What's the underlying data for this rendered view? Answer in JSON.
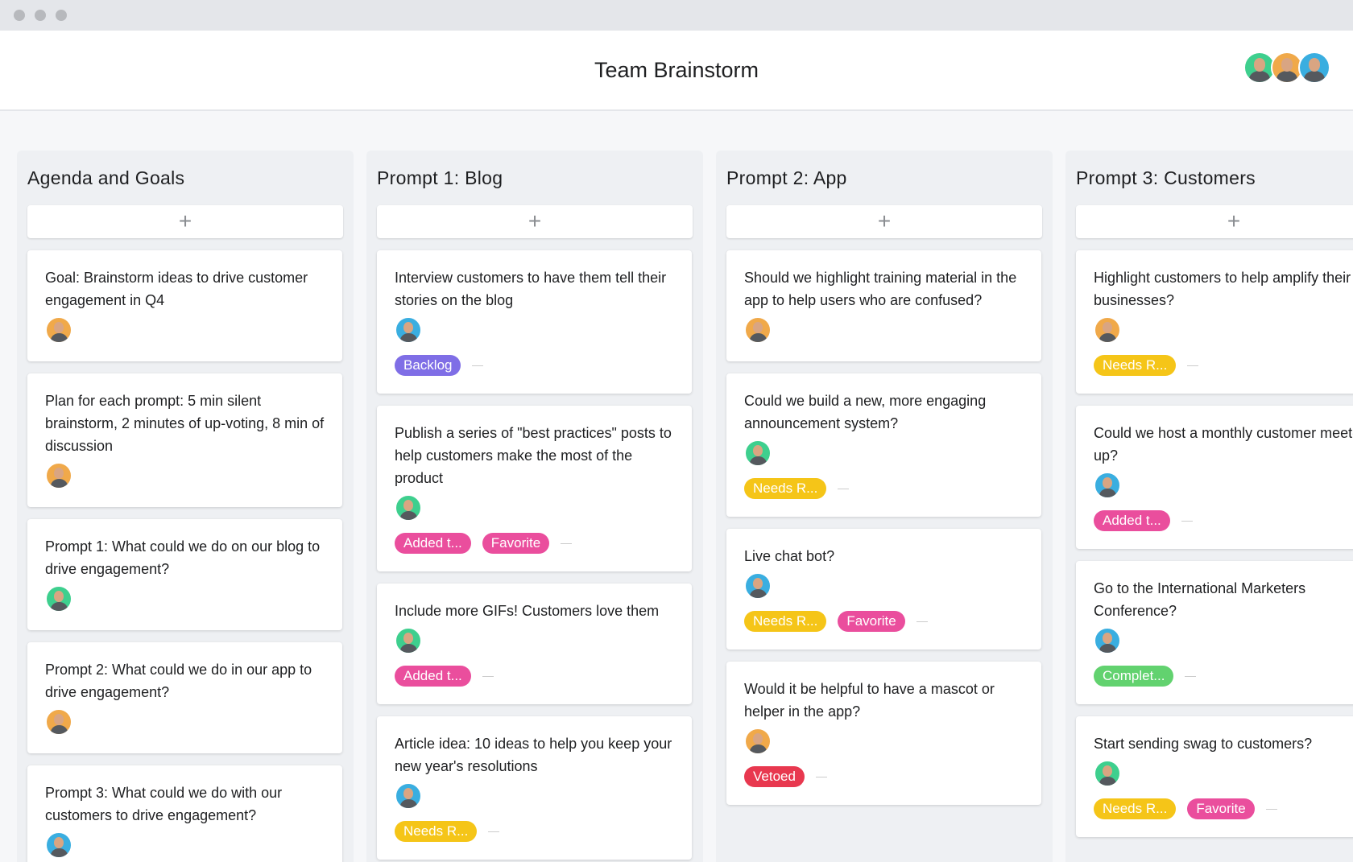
{
  "header": {
    "title": "Team Brainstorm",
    "members": [
      "#3ecf8e",
      "#f0a94a",
      "#3aaee0"
    ]
  },
  "columns": [
    {
      "title": "Agenda and Goals",
      "cards": [
        {
          "text": "Goal: Brainstorm ideas to drive customer engagement in Q4",
          "avatar": "#f0a94a",
          "tags": []
        },
        {
          "text": "Plan for each prompt: 5 min silent brainstorm, 2 minutes of up-voting, 8 min of discussion",
          "avatar": "#f0a94a",
          "tags": []
        },
        {
          "text": "Prompt 1: What could we do on our blog to drive engagement?",
          "avatar": "#3ecf8e",
          "tags": []
        },
        {
          "text": "Prompt 2: What could we do in our app to drive engagement?",
          "avatar": "#f0a94a",
          "tags": []
        },
        {
          "text": "Prompt 3: What could we do with our customers to drive engagement?",
          "avatar": "#3aaee0",
          "tags": []
        }
      ]
    },
    {
      "title": "Prompt 1: Blog",
      "cards": [
        {
          "text": "Interview customers to have them tell their stories on the blog",
          "avatar": "#3aaee0",
          "tags": [
            {
              "text": "Backlog",
              "color": "#7f6ee6"
            }
          ]
        },
        {
          "text": "Publish a series of \"best practices\" posts to help customers make the most of the product",
          "avatar": "#3ecf8e",
          "tags": [
            {
              "text": "Added t...",
              "color": "#ea4e9d"
            },
            {
              "text": "Favorite",
              "color": "#ea4e9d"
            }
          ]
        },
        {
          "text": "Include more GIFs! Customers love them",
          "avatar": "#3ecf8e",
          "tags": [
            {
              "text": "Added t...",
              "color": "#ea4e9d"
            }
          ]
        },
        {
          "text": "Article idea: 10 ideas to help you keep your new year's resolutions",
          "avatar": "#3aaee0",
          "tags": [
            {
              "text": "Needs R...",
              "color": "#f5c518"
            }
          ]
        }
      ]
    },
    {
      "title": "Prompt 2: App",
      "cards": [
        {
          "text": "Should we highlight training material in the app to help users who are confused?",
          "avatar": "#f0a94a",
          "tags": []
        },
        {
          "text": "Could we build a new, more engaging announcement system?",
          "avatar": "#3ecf8e",
          "tags": [
            {
              "text": "Needs R...",
              "color": "#f5c518"
            }
          ]
        },
        {
          "text": "Live chat bot?",
          "avatar": "#3aaee0",
          "tags": [
            {
              "text": "Needs R...",
              "color": "#f5c518"
            },
            {
              "text": "Favorite",
              "color": "#ea4e9d"
            }
          ]
        },
        {
          "text": "Would it be helpful to have a mascot or helper in the app?",
          "avatar": "#f0a94a",
          "tags": [
            {
              "text": "Vetoed",
              "color": "#e8384f"
            }
          ]
        }
      ]
    },
    {
      "title": "Prompt 3: Customers",
      "cards": [
        {
          "text": "Highlight customers to help amplify their businesses?",
          "avatar": "#f0a94a",
          "tags": [
            {
              "text": "Needs R...",
              "color": "#f5c518"
            }
          ]
        },
        {
          "text": "Could we host a monthly customer meet-up?",
          "avatar": "#3aaee0",
          "tags": [
            {
              "text": "Added t...",
              "color": "#ea4e9d"
            }
          ]
        },
        {
          "text": "Go to the International Marketers Conference?",
          "avatar": "#3aaee0",
          "tags": [
            {
              "text": "Complet...",
              "color": "#62d26f"
            }
          ]
        },
        {
          "text": "Start sending swag to customers?",
          "avatar": "#3ecf8e",
          "tags": [
            {
              "text": "Needs R...",
              "color": "#f5c518"
            },
            {
              "text": "Favorite",
              "color": "#ea4e9d"
            }
          ]
        }
      ]
    }
  ]
}
